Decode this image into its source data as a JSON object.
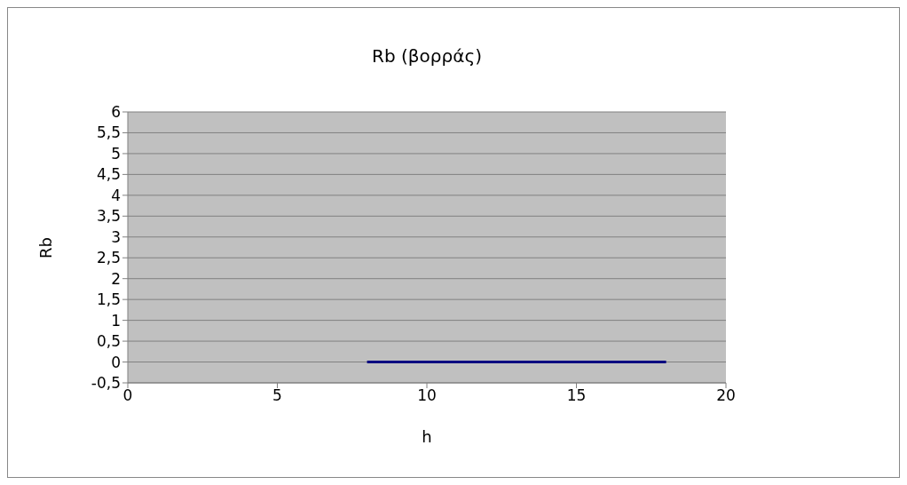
{
  "chart_data": {
    "type": "line",
    "title": "Rb (βορράς)",
    "xlabel": "h",
    "ylabel": "Rb",
    "x": [
      8,
      18
    ],
    "series": [
      {
        "color": "#000080",
        "values": [
          0,
          0
        ]
      }
    ],
    "xlim": [
      0,
      20
    ],
    "xticks": [
      0,
      5,
      10,
      15,
      20
    ],
    "ylim": [
      -0.5,
      6
    ],
    "yticks": [
      {
        "value": -0.5,
        "label": "-0,5"
      },
      0,
      {
        "value": 0.5,
        "label": "0,5"
      },
      1,
      {
        "value": 1.5,
        "label": "1,5"
      },
      2,
      {
        "value": 2.5,
        "label": "2,5"
      },
      3,
      {
        "value": 3.5,
        "label": "3,5"
      },
      4,
      {
        "value": 4.5,
        "label": "4,5"
      },
      5,
      {
        "value": 5.5,
        "label": "5,5"
      },
      6
    ],
    "grid": "y",
    "legend": false
  }
}
